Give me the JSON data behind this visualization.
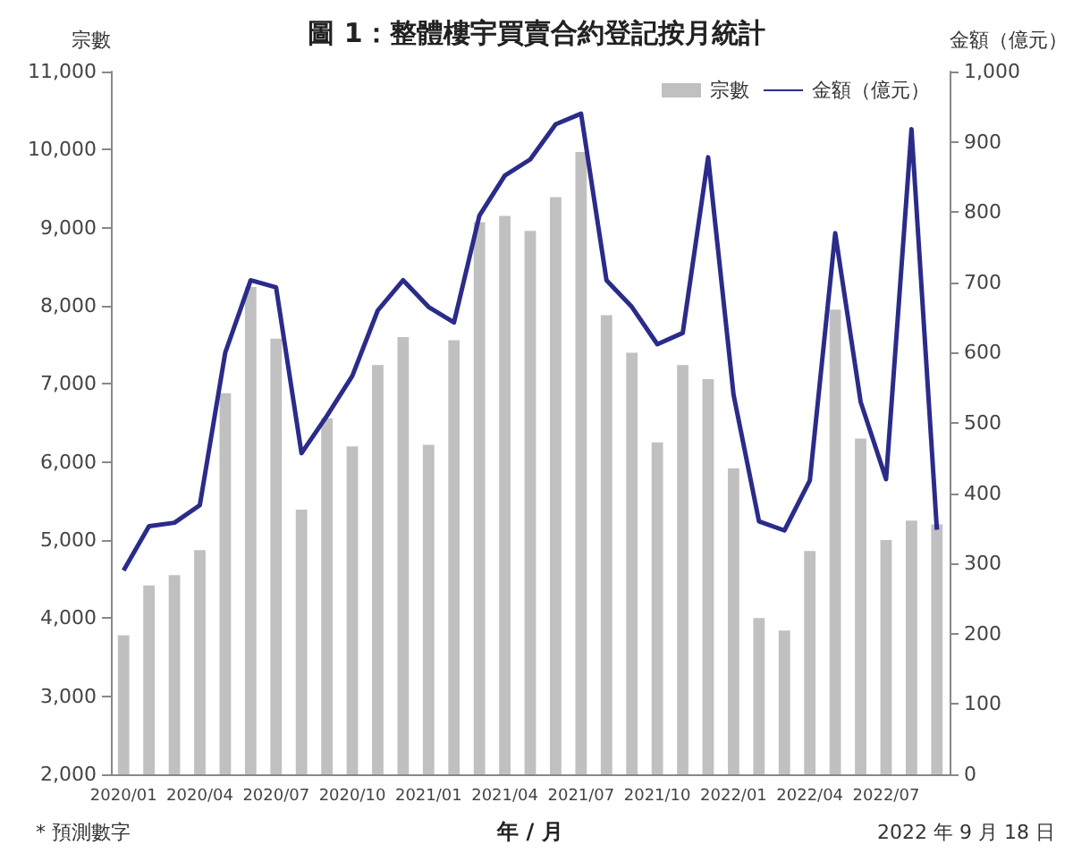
{
  "chart_data": {
    "type": "bar",
    "title": "圖 1：整體樓宇買賣合約登記按月統計",
    "xlabel": "年 / 月",
    "ylabel": "宗數",
    "y2label": "金額（億元）",
    "categories": [
      "2020/01",
      null,
      null,
      "2020/04",
      null,
      null,
      "2020/07",
      null,
      null,
      "2020/10",
      null,
      null,
      "2021/01",
      null,
      null,
      "2021/04",
      null,
      null,
      "2021/07",
      null,
      null,
      "2021/10",
      null,
      null,
      "2022/01",
      null,
      null,
      "2022/04",
      null,
      null,
      "2022/07",
      null,
      null
    ],
    "series": [
      {
        "name": "宗數",
        "color": "#c0c0c0",
        "values": [
          3780,
          4420,
          4550,
          4870,
          6880,
          8240,
          7580,
          5390,
          6560,
          6200,
          7240,
          7600,
          6220,
          7560,
          9070,
          9150,
          8960,
          9390,
          9970,
          7880,
          7400,
          6250,
          7240,
          7060,
          5920,
          4000,
          3840,
          4860,
          7950,
          6300,
          5000,
          5250,
          5200
        ]
      },
      {
        "name": "金額（億元）",
        "type": "line",
        "axis": "y2",
        "color": "#2b2b8a",
        "values": [
          290,
          353,
          358,
          383,
          600,
          703,
          693,
          457,
          510,
          567,
          660,
          703,
          665,
          643,
          795,
          852,
          875,
          925,
          940,
          703,
          665,
          612,
          628,
          878,
          540,
          360,
          347,
          418,
          770,
          530,
          420,
          918,
          348
        ]
      }
    ],
    "ylim": [
      2000,
      11000
    ],
    "yticks": [
      {
        "value": 2000,
        "label": "2,000"
      },
      {
        "value": 3000,
        "label": "3,000"
      },
      {
        "value": 4000,
        "label": "4,000"
      },
      {
        "value": 5000,
        "label": "5,000"
      },
      {
        "value": 6000,
        "label": "6,000"
      },
      {
        "value": 7000,
        "label": "7,000"
      },
      {
        "value": 8000,
        "label": "8,000"
      },
      {
        "value": 9000,
        "label": "9,000"
      },
      {
        "value": 10000,
        "label": "10,000"
      },
      {
        "value": 11000,
        "label": "11,000"
      }
    ],
    "y2lim": [
      0,
      1000
    ],
    "y2ticks": [
      0,
      100,
      200,
      300,
      400,
      500,
      600,
      700,
      800,
      900,
      {
        "value": 1000,
        "label": "1,000"
      }
    ],
    "grid": false,
    "legend": "top right",
    "marker": "none",
    "line_style": "solid",
    "annotations": [
      "* 預測數字",
      "2022 年 9 月 18 日"
    ]
  }
}
